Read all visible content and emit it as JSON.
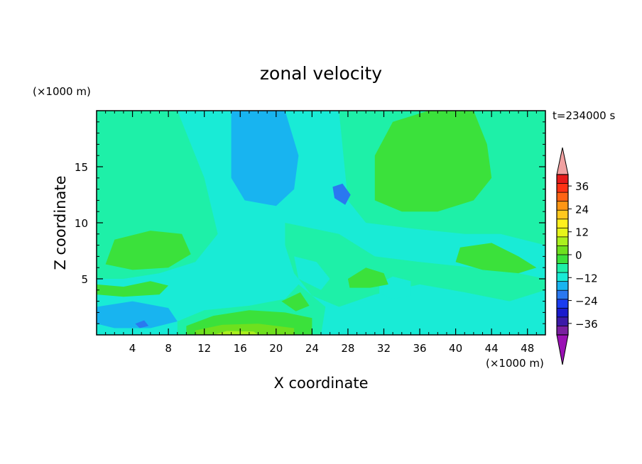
{
  "chart_data": {
    "type": "heatmap",
    "title": "zonal velocity",
    "xlabel": "X coordinate",
    "ylabel": "Z coordinate",
    "x_unit": "(×1000 m)",
    "y_unit": "(×1000 m)",
    "time_label": "t=234000 s",
    "xlim": [
      0,
      50
    ],
    "ylim": [
      0,
      20
    ],
    "x_ticks": [
      4,
      8,
      12,
      16,
      20,
      24,
      28,
      32,
      36,
      40,
      44,
      48
    ],
    "y_ticks": [
      5,
      10,
      15
    ],
    "colorbar": {
      "min": -42,
      "max": 42,
      "step": 6,
      "tick_values": [
        36,
        24,
        12,
        0,
        -12,
        -24,
        -36
      ],
      "tick_labels": [
        "36",
        "24",
        "12",
        "0",
        "−12",
        "−24",
        "−36"
      ],
      "colors": [
        "#7a1fa0",
        "#3c1aa8",
        "#1a1acd",
        "#1a3cf0",
        "#2a78f0",
        "#18b4f0",
        "#19ebd6",
        "#1ef0a8",
        "#3be13b",
        "#6ee01e",
        "#aaf01e",
        "#e6f51a",
        "#fff01e",
        "#ffc81e",
        "#ff9614",
        "#ff6414",
        "#ff3214",
        "#e61a1a"
      ],
      "over_color": "#f0a0a0",
      "under_color": "#9a10b4"
    },
    "regions": [
      {
        "value": -8,
        "points": [
          [
            0,
            0
          ],
          [
            50,
            0
          ],
          [
            50,
            20
          ],
          [
            0,
            20
          ]
        ]
      },
      {
        "value": -3,
        "points": [
          [
            0,
            0
          ],
          [
            50,
            0
          ],
          [
            50,
            20
          ],
          [
            0,
            20
          ]
        ]
      },
      {
        "value": 2,
        "points": [
          [
            0,
            20
          ],
          [
            9,
            20
          ],
          [
            12,
            14
          ],
          [
            13.5,
            9
          ],
          [
            11,
            6.5
          ],
          [
            7,
            5.5
          ],
          [
            3,
            5
          ],
          [
            0,
            5
          ]
        ]
      },
      {
        "value": 2,
        "points": [
          [
            21,
            20
          ],
          [
            27,
            20
          ],
          [
            28,
            12
          ],
          [
            30,
            10
          ],
          [
            35,
            9.5
          ],
          [
            41,
            9
          ],
          [
            45,
            9
          ],
          [
            50,
            8
          ],
          [
            50,
            20
          ]
        ]
      },
      {
        "value": 2,
        "points": [
          [
            21,
            10
          ],
          [
            27,
            9
          ],
          [
            31,
            7
          ],
          [
            36,
            6.5
          ],
          [
            42,
            6
          ],
          [
            47,
            5.5
          ],
          [
            50,
            5
          ],
          [
            50,
            4
          ],
          [
            46,
            3
          ],
          [
            41,
            3.8
          ],
          [
            36,
            4.5
          ],
          [
            31,
            3.6
          ],
          [
            27,
            2.5
          ],
          [
            24,
            3.5
          ],
          [
            22,
            5.5
          ],
          [
            21,
            8
          ]
        ]
      },
      {
        "value": 2,
        "points": [
          [
            9,
            0
          ],
          [
            25,
            0
          ],
          [
            25.5,
            2.5
          ],
          [
            22.5,
            4.5
          ],
          [
            21,
            3.2
          ],
          [
            17,
            2.6
          ],
          [
            12,
            2.2
          ],
          [
            9,
            1.2
          ]
        ]
      },
      {
        "value": -3,
        "points": [
          [
            31.5,
            4.6
          ],
          [
            33,
            5.2
          ],
          [
            35,
            4.8
          ],
          [
            35,
            3.5
          ],
          [
            33,
            3.2
          ],
          [
            31.5,
            3.7
          ]
        ]
      },
      {
        "value": -3,
        "points": [
          [
            22,
            7
          ],
          [
            24.5,
            6.5
          ],
          [
            26,
            5
          ],
          [
            25,
            4
          ],
          [
            22.5,
            5
          ]
        ]
      },
      {
        "value": -8,
        "points": [
          [
            15,
            20
          ],
          [
            21,
            20
          ],
          [
            22.5,
            16
          ],
          [
            22,
            13
          ],
          [
            20,
            11.5
          ],
          [
            16.5,
            12
          ],
          [
            15,
            14
          ]
        ]
      },
      {
        "value": -8,
        "points": [
          [
            0,
            2.5
          ],
          [
            4,
            3
          ],
          [
            8,
            2.4
          ],
          [
            9,
            1.2
          ],
          [
            6,
            0.6
          ],
          [
            2,
            0.6
          ],
          [
            0,
            1
          ]
        ]
      },
      {
        "value": -14,
        "points": [
          [
            26.5,
            12.2
          ],
          [
            27.7,
            11.6
          ],
          [
            28.3,
            12.5
          ],
          [
            27.4,
            13.5
          ],
          [
            26.3,
            13.2
          ]
        ]
      },
      {
        "value": 7,
        "points": [
          [
            31,
            16
          ],
          [
            33,
            19
          ],
          [
            37,
            20
          ],
          [
            42,
            20
          ],
          [
            43.5,
            17
          ],
          [
            44,
            14
          ],
          [
            42,
            12
          ],
          [
            38,
            11
          ],
          [
            34,
            11
          ],
          [
            31,
            12
          ]
        ]
      },
      {
        "value": 7,
        "points": [
          [
            2,
            8.5
          ],
          [
            6,
            9.3
          ],
          [
            9.5,
            9
          ],
          [
            10.5,
            7.2
          ],
          [
            8,
            6
          ],
          [
            4,
            5.8
          ],
          [
            1,
            6.3
          ]
        ]
      },
      {
        "value": 7,
        "points": [
          [
            0,
            4.5
          ],
          [
            3,
            4.3
          ],
          [
            6,
            4.8
          ],
          [
            8,
            4.4
          ],
          [
            7,
            3.6
          ],
          [
            3,
            3.4
          ],
          [
            0,
            3.6
          ]
        ]
      },
      {
        "value": 7,
        "points": [
          [
            40.5,
            7.8
          ],
          [
            44,
            8.2
          ],
          [
            47,
            7
          ],
          [
            49,
            6
          ],
          [
            47,
            5.5
          ],
          [
            43,
            5.8
          ],
          [
            40,
            6.5
          ]
        ]
      },
      {
        "value": 7,
        "points": [
          [
            28,
            5
          ],
          [
            30,
            6
          ],
          [
            32,
            5.5
          ],
          [
            32.5,
            4.5
          ],
          [
            30.5,
            4.2
          ],
          [
            28.2,
            4.2
          ]
        ]
      },
      {
        "value": 7,
        "points": [
          [
            10,
            0
          ],
          [
            24,
            0
          ],
          [
            24,
            1.5
          ],
          [
            21,
            2
          ],
          [
            17,
            2.2
          ],
          [
            13,
            1.7
          ],
          [
            10,
            0.8
          ]
        ]
      },
      {
        "value": 7,
        "points": [
          [
            20.6,
            3
          ],
          [
            22.7,
            3.8
          ],
          [
            23.7,
            2.6
          ],
          [
            22.2,
            2.1
          ]
        ]
      },
      {
        "value": 13,
        "points": [
          [
            11,
            0
          ],
          [
            22,
            0
          ],
          [
            22,
            0.6
          ],
          [
            18,
            1
          ],
          [
            14,
            0.9
          ],
          [
            11,
            0.4
          ]
        ]
      },
      {
        "value": 18,
        "points": [
          [
            13,
            0
          ],
          [
            18,
            0
          ],
          [
            17.5,
            0.3
          ],
          [
            14.5,
            0.35
          ]
        ]
      },
      {
        "value": -14,
        "points": [
          [
            4.3,
            1
          ],
          [
            5.3,
            1.3
          ],
          [
            5.8,
            0.8
          ],
          [
            4.8,
            0.6
          ]
        ]
      }
    ]
  }
}
